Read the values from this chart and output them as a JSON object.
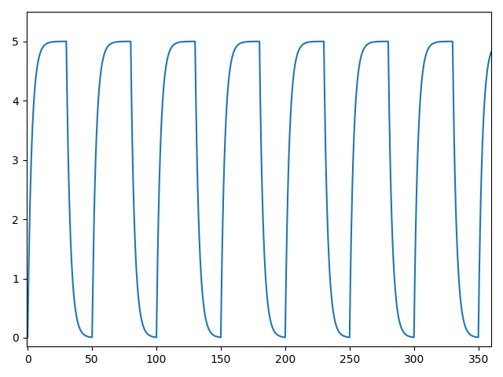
{
  "title": "",
  "xlabel": "",
  "ylabel": "",
  "xlim": [
    -1,
    360
  ],
  "ylim": [
    -0.15,
    5.5
  ],
  "xticks": [
    0,
    50,
    100,
    150,
    200,
    250,
    300,
    350
  ],
  "yticks": [
    0,
    1,
    2,
    3,
    4,
    5
  ],
  "line_color": "#1f77b4",
  "line_width": 1.5,
  "period": 50,
  "high_duration": 30,
  "low_duration": 20,
  "high_value": 5.0,
  "low_value": 0.0,
  "rise_tau": 3.0,
  "fall_tau": 3.0,
  "low_floor": 0.08,
  "num_points": 10000,
  "t_end": 362,
  "figsize": [
    6.4,
    4.8
  ],
  "dpi": 100
}
